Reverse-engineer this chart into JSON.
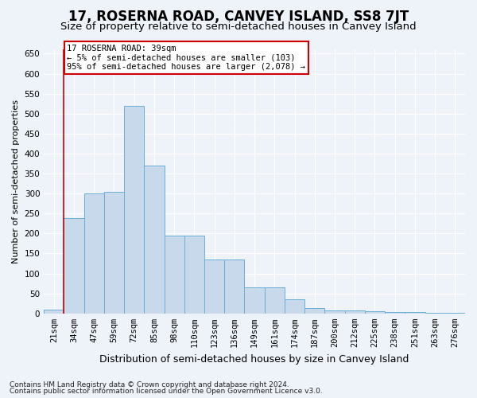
{
  "title": "17, ROSERNA ROAD, CANVEY ISLAND, SS8 7JT",
  "subtitle": "Size of property relative to semi-detached houses in Canvey Island",
  "xlabel": "Distribution of semi-detached houses by size in Canvey Island",
  "ylabel": "Number of semi-detached properties",
  "categories": [
    "21sqm",
    "34sqm",
    "47sqm",
    "59sqm",
    "72sqm",
    "85sqm",
    "98sqm",
    "110sqm",
    "123sqm",
    "136sqm",
    "149sqm",
    "161sqm",
    "174sqm",
    "187sqm",
    "200sqm",
    "212sqm",
    "225sqm",
    "238sqm",
    "251sqm",
    "263sqm",
    "276sqm"
  ],
  "values": [
    10,
    238,
    300,
    305,
    520,
    370,
    195,
    195,
    135,
    135,
    65,
    65,
    35,
    14,
    8,
    8,
    5,
    3,
    3,
    2,
    2
  ],
  "bar_color": "#c8d9ec",
  "bar_edge_color": "#6aaed6",
  "vline_x_idx": 1,
  "annotation_text": "17 ROSERNA ROAD: 39sqm\n← 5% of semi-detached houses are smaller (103)\n95% of semi-detached houses are larger (2,078) →",
  "annotation_box_facecolor": "#ffffff",
  "annotation_box_edgecolor": "#cc0000",
  "vline_color": "#cc0000",
  "ylim": [
    0,
    660
  ],
  "yticks": [
    0,
    50,
    100,
    150,
    200,
    250,
    300,
    350,
    400,
    450,
    500,
    550,
    600,
    650
  ],
  "footnote1": "Contains HM Land Registry data © Crown copyright and database right 2024.",
  "footnote2": "Contains public sector information licensed under the Open Government Licence v3.0.",
  "title_fontsize": 12,
  "subtitle_fontsize": 9.5,
  "xlabel_fontsize": 9,
  "ylabel_fontsize": 8,
  "tick_fontsize": 7.5,
  "annot_fontsize": 7.5,
  "footnote_fontsize": 6.5,
  "background_color": "#eef2f9"
}
